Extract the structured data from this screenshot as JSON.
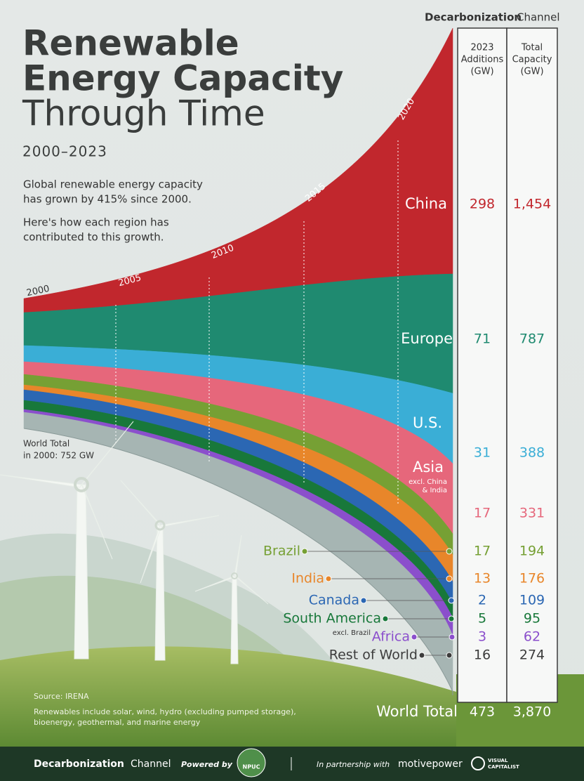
{
  "header": {
    "brand": "Decarbonization",
    "brand_suffix": "Channel",
    "title": [
      "Renewable",
      "Energy Capacity",
      "Through Time"
    ],
    "period": "2000–2023",
    "intro": [
      "Global renewable energy capacity",
      "has grown by 415% since 2000."
    ],
    "intro2": [
      "Here's how each region has",
      "contributed to this growth."
    ]
  },
  "timeline": {
    "years": [
      "2000",
      "2005",
      "2010",
      "2015",
      "2020"
    ],
    "start_note": [
      "World Total",
      "in 2000: 752 GW"
    ]
  },
  "table": {
    "columns": [
      [
        "2023",
        "Additions",
        "(GW)"
      ],
      [
        "Total",
        "Capacity",
        "(GW)"
      ]
    ],
    "rows": [
      {
        "name": "China",
        "note": [],
        "additions": "298",
        "total": "1,454",
        "color": "#c1272d"
      },
      {
        "name": "Europe",
        "note": [],
        "additions": "71",
        "total": "787",
        "color": "#1f8a70"
      },
      {
        "name": "U.S.",
        "note": [],
        "additions": "31",
        "total": "388",
        "color": "#3aaed6"
      },
      {
        "name": "Asia",
        "note": [
          "excl. China",
          "& India"
        ],
        "additions": "17",
        "total": "331",
        "color": "#e6677b"
      },
      {
        "name": "Brazil",
        "note": [],
        "additions": "17",
        "total": "194",
        "color": "#76a034"
      },
      {
        "name": "India",
        "note": [],
        "additions": "13",
        "total": "176",
        "color": "#e8862a"
      },
      {
        "name": "Canada",
        "note": [],
        "additions": "2",
        "total": "109",
        "color": "#2b67b3"
      },
      {
        "name": "South America",
        "note": [
          "excl. Brazil"
        ],
        "additions": "5",
        "total": "95",
        "color": "#18783a"
      },
      {
        "name": "Africa",
        "note": [],
        "additions": "3",
        "total": "62",
        "color": "#8b4fcc"
      },
      {
        "name": "Rest of World",
        "note": [],
        "additions": "16",
        "total": "274",
        "color": "#a6b5b3"
      }
    ],
    "total": {
      "name": "World Total",
      "additions": "473",
      "total": "3,870"
    }
  },
  "footer": {
    "source": "Source: IRENA",
    "note": [
      "Renewables include solar, wind, hydro (excluding pumped storage),",
      "bioenergy, geothermal, and marine energy"
    ],
    "powered": "Powered by",
    "badge": "NPUC",
    "partner": "In partnership with",
    "partner1": "motivepower",
    "partner2": [
      "VISUAL",
      "CAPITALIST"
    ]
  }
}
